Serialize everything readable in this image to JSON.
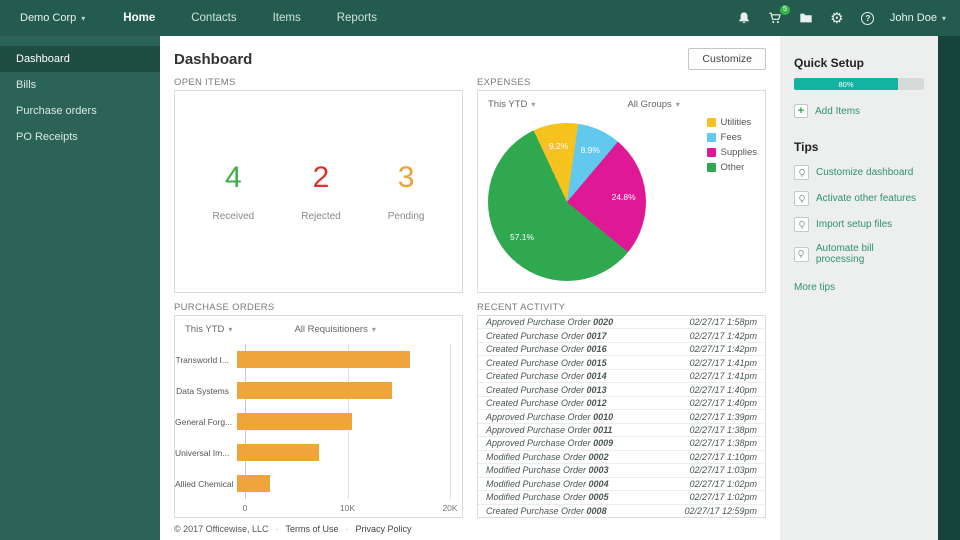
{
  "topbar": {
    "company_label": "Demo Corp",
    "nav_items": [
      {
        "label": "Home",
        "active": true
      },
      {
        "label": "Contacts",
        "active": false
      },
      {
        "label": "Items",
        "active": false
      },
      {
        "label": "Reports",
        "active": false
      }
    ],
    "notification_badge": "5",
    "user_label": "John Doe"
  },
  "sidebar": {
    "items": [
      {
        "label": "Dashboard",
        "active": true
      },
      {
        "label": "Bills",
        "active": false
      },
      {
        "label": "Purchase orders",
        "active": false
      },
      {
        "label": "PO Receipts",
        "active": false
      }
    ]
  },
  "main": {
    "page_title": "Dashboard",
    "customize_label": "Customize",
    "open_items": {
      "title": "OPEN ITEMS",
      "stats": [
        {
          "value": "4",
          "label": "Received",
          "color": "#3fae49"
        },
        {
          "value": "2",
          "label": "Rejected",
          "color": "#d9342b"
        },
        {
          "value": "3",
          "label": "Pending",
          "color": "#f0a02f"
        }
      ]
    },
    "expenses": {
      "title": "EXPENSES",
      "period_filter": "This YTD",
      "group_filter": "All Groups"
    },
    "purchase_orders": {
      "title": "PURCHASE ORDERS",
      "period_filter": "This YTD",
      "requisitioner_filter": "All Requisitioners"
    },
    "recent_activity": {
      "title": "RECENT ACTIVITY",
      "rows": [
        {
          "action": "Approved Purchase Order",
          "number": "0020",
          "time": "02/27/17 1:58pm"
        },
        {
          "action": "Created Purchase Order",
          "number": "0017",
          "time": "02/27/17 1:42pm"
        },
        {
          "action": "Created Purchase Order",
          "number": "0016",
          "time": "02/27/17 1:42pm"
        },
        {
          "action": "Created Purchase Order",
          "number": "0015",
          "time": "02/27/17 1:41pm"
        },
        {
          "action": "Created Purchase Order",
          "number": "0014",
          "time": "02/27/17 1:41pm"
        },
        {
          "action": "Created Purchase Order",
          "number": "0013",
          "time": "02/27/17 1:40pm"
        },
        {
          "action": "Created Purchase Order",
          "number": "0012",
          "time": "02/27/17 1:40pm"
        },
        {
          "action": "Approved Purchase Order",
          "number": "0010",
          "time": "02/27/17 1:39pm"
        },
        {
          "action": "Approved Purchase Order",
          "number": "0011",
          "time": "02/27/17 1:38pm"
        },
        {
          "action": "Approved Purchase Order",
          "number": "0009",
          "time": "02/27/17 1:38pm"
        },
        {
          "action": "Modified Purchase Order",
          "number": "0002",
          "time": "02/27/17 1:10pm"
        },
        {
          "action": "Modified Purchase Order",
          "number": "0003",
          "time": "02/27/17 1:03pm"
        },
        {
          "action": "Modified Purchase Order",
          "number": "0004",
          "time": "02/27/17 1:02pm"
        },
        {
          "action": "Modified Purchase Order",
          "number": "0005",
          "time": "02/27/17 1:02pm"
        },
        {
          "action": "Created Purchase Order",
          "number": "0008",
          "time": "02/27/17 12:59pm"
        }
      ]
    },
    "footer": {
      "copyright": "© 2017 Officewise, LLC",
      "terms_label": "Terms of Use",
      "privacy_label": "Privacy Policy"
    }
  },
  "right_panel": {
    "quick_setup_title": "Quick Setup",
    "progress_percent": 80,
    "progress_label": "80%",
    "progress_color": "#14b3a1",
    "add_items_label": "Add Items",
    "tips_title": "Tips",
    "tips": [
      "Customize dashboard",
      "Activate other features",
      "Import setup files",
      "Automate bill processing"
    ],
    "more_tips_label": "More tips"
  },
  "chart_data": [
    {
      "type": "pie",
      "title": "Expenses",
      "labels": [
        "Utilities",
        "Fees",
        "Supplies",
        "Other"
      ],
      "values": [
        9.2,
        8.9,
        24.8,
        57.1
      ],
      "value_labels": [
        "9.2%",
        "8.9%",
        "24.8%",
        "57.1%"
      ],
      "colors": [
        "#f6c21d",
        "#62c9ee",
        "#df1995",
        "#2fa84f"
      ],
      "legend_position": "right"
    },
    {
      "type": "bar",
      "orientation": "horizontal",
      "title": "Purchase Orders",
      "categories": [
        "Transworld I...",
        "Data Systems",
        "General Forg...",
        "Universal Im...",
        "Allied Chemical"
      ],
      "values": [
        16200,
        14600,
        10800,
        7700,
        3100
      ],
      "bar_color": "#f0a43c",
      "xlim": [
        0,
        20000
      ],
      "xticks": [
        {
          "label": "0",
          "pos": 0
        },
        {
          "label": "10K",
          "pos": 50
        },
        {
          "label": "20K",
          "pos": 100
        }
      ]
    }
  ]
}
